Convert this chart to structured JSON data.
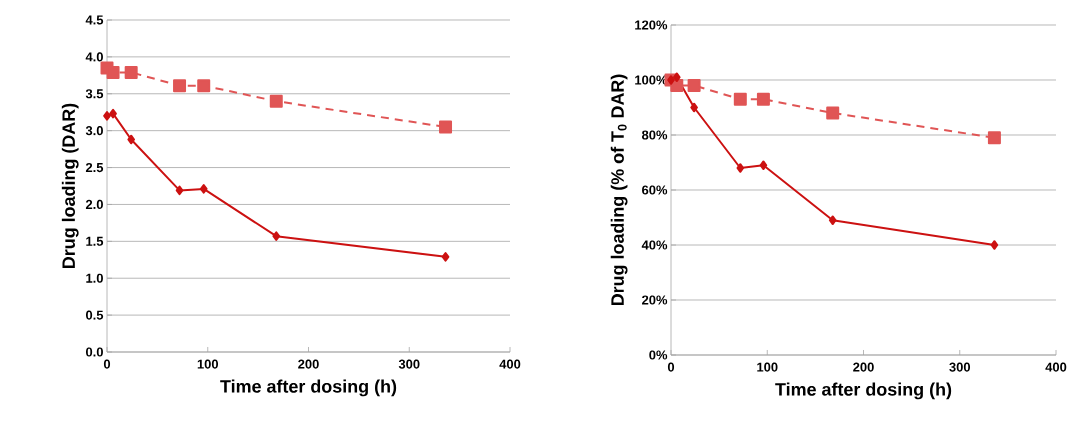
{
  "chart_data": [
    {
      "type": "line",
      "xlabel": "Time after dosing (h)",
      "ylabel": "Drug loading (DAR)",
      "x": [
        0,
        6,
        24,
        72,
        96,
        168,
        336
      ],
      "series": [
        {
          "color": "#cc1111",
          "marker": "diamond",
          "line_style": "solid",
          "values": [
            3.2,
            3.23,
            2.88,
            2.19,
            2.21,
            1.57,
            1.29
          ]
        },
        {
          "color": "#e05555",
          "marker": "square",
          "line_style": "dashed",
          "values": [
            3.85,
            3.79,
            3.79,
            3.61,
            3.61,
            3.4,
            3.05
          ]
        }
      ],
      "xlim": [
        0,
        400
      ],
      "xticks": [
        0,
        100,
        200,
        300,
        400
      ],
      "ylim": [
        0,
        4.5
      ],
      "yticks": [
        {
          "value": 0,
          "label": "0.0"
        },
        0.5,
        {
          "value": 1,
          "label": "1.0"
        },
        1.5,
        {
          "value": 2,
          "label": "2.0"
        },
        2.5,
        {
          "value": 3,
          "label": "3.0"
        },
        3.5,
        {
          "value": 4,
          "label": "4.0"
        },
        4.5
      ],
      "grid": "y"
    },
    {
      "type": "line",
      "xlabel": "Time after dosing (h)",
      "ylabel": "Drug loading (% of T$_{0}$ DAR)",
      "x": [
        0,
        6,
        24,
        72,
        96,
        168,
        336
      ],
      "series": [
        {
          "color": "#cc1111",
          "marker": "diamond",
          "line_style": "solid",
          "values": [
            100,
            101,
            90,
            68,
            69,
            49,
            40
          ]
        },
        {
          "color": "#e05555",
          "marker": "square",
          "line_style": "dashed",
          "values": [
            100,
            98,
            98,
            93,
            93,
            88,
            79
          ]
        }
      ],
      "xlim": [
        0,
        400
      ],
      "xticks": [
        0,
        100,
        200,
        300,
        400
      ],
      "ylim": [
        0,
        120
      ],
      "yticks": [
        {
          "value": 0,
          "label": "0%"
        },
        {
          "value": 20,
          "label": "20%"
        },
        {
          "value": 40,
          "label": "40%"
        },
        {
          "value": 60,
          "label": "60%"
        },
        {
          "value": 80,
          "label": "80%"
        },
        {
          "value": 100,
          "label": "100%"
        },
        {
          "value": 120,
          "label": "120%"
        }
      ],
      "grid": "y"
    }
  ]
}
